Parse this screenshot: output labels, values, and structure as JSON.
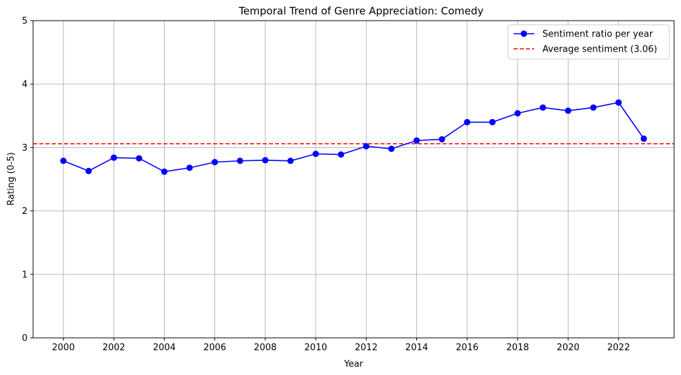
{
  "chart_data": {
    "type": "line",
    "title": "Temporal Trend of Genre Appreciation: Comedy",
    "xlabel": "Year",
    "ylabel": "Rating (0-5)",
    "xlim": [
      1998.8,
      2024.2
    ],
    "ylim": [
      0,
      5
    ],
    "x_ticks": [
      2000,
      2002,
      2004,
      2006,
      2008,
      2010,
      2012,
      2014,
      2016,
      2018,
      2020,
      2022
    ],
    "y_ticks": [
      0,
      1,
      2,
      3,
      4,
      5
    ],
    "grid": true,
    "legend_position": "top-right",
    "series": [
      {
        "name": "Sentiment ratio per year",
        "color": "#0000ff",
        "marker": "circle",
        "x": [
          2000,
          2001,
          2002,
          2003,
          2004,
          2005,
          2006,
          2007,
          2008,
          2009,
          2010,
          2011,
          2012,
          2013,
          2014,
          2015,
          2016,
          2017,
          2018,
          2019,
          2020,
          2021,
          2022,
          2023
        ],
        "y": [
          2.79,
          2.63,
          2.84,
          2.83,
          2.62,
          2.68,
          2.77,
          2.79,
          2.8,
          2.79,
          2.9,
          2.89,
          3.02,
          2.98,
          3.11,
          3.13,
          3.4,
          3.4,
          3.54,
          3.63,
          3.58,
          3.63,
          3.71,
          3.14
        ]
      }
    ],
    "reference_lines": [
      {
        "name": "Average sentiment (3.06)",
        "y": 3.06,
        "color": "#ff0000",
        "style": "dashed"
      }
    ]
  }
}
